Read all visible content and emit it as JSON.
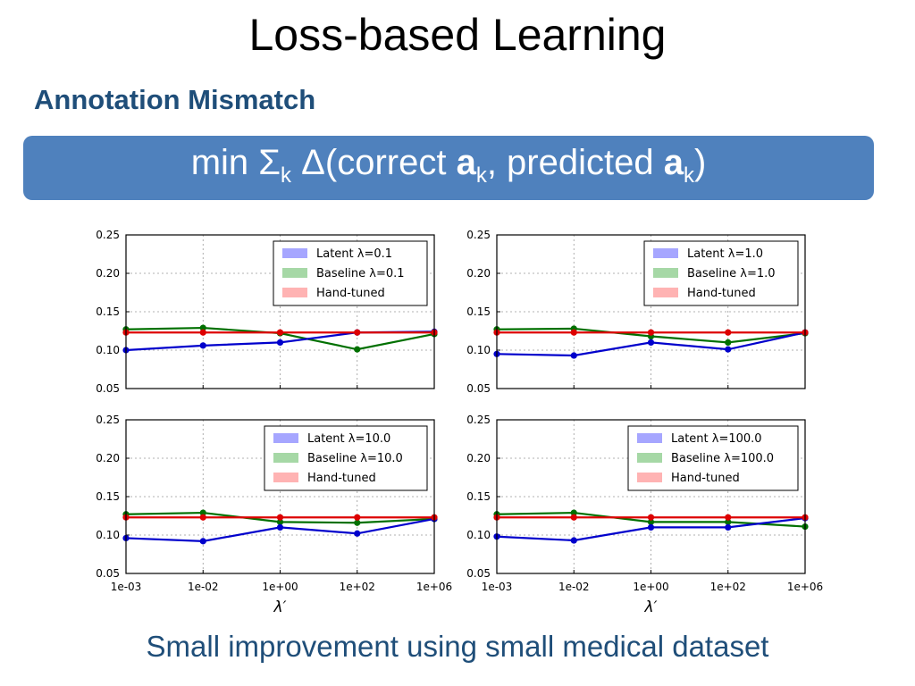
{
  "slide": {
    "title": "Loss-based Learning",
    "subtitle": "Annotation Mismatch",
    "formula": {
      "min": "min",
      "sigma": "Σ",
      "sigma_sub": "k",
      "delta": "Δ(correct ",
      "a1": "a",
      "a1_sub": "k",
      "mid": ", predicted ",
      "a2": "a",
      "a2_sub": "k",
      "close": ")"
    },
    "caption": "Small improvement using small medical dataset",
    "xlabel": "λ′"
  },
  "chart_data": [
    {
      "type": "line",
      "x": [
        "1e-03",
        "1e-02",
        "1e+00",
        "1e+02",
        "1e+06"
      ],
      "ylim": [
        0.05,
        0.25
      ],
      "yticks": [
        "0.25",
        "0.20",
        "0.15",
        "0.10",
        "0.05"
      ],
      "grid": true,
      "legend_position": "top-right",
      "series": [
        {
          "name": "Latent λ=0.1",
          "color": "#0000cc",
          "legend_color": "#a6a6ff",
          "values": [
            0.1,
            0.106,
            0.11,
            0.123,
            0.124
          ]
        },
        {
          "name": "Baseline λ=0.1",
          "color": "#007000",
          "legend_color": "#a6d8a6",
          "values": [
            0.127,
            0.129,
            0.122,
            0.101,
            0.121
          ]
        },
        {
          "name": "Hand-tuned",
          "color": "#dd0000",
          "legend_color": "#ffb3b3",
          "values": [
            0.123,
            0.123,
            0.123,
            0.123,
            0.123
          ]
        }
      ]
    },
    {
      "type": "line",
      "x": [
        "1e-03",
        "1e-02",
        "1e+00",
        "1e+02",
        "1e+06"
      ],
      "ylim": [
        0.05,
        0.25
      ],
      "yticks": [
        "0.25",
        "0.20",
        "0.15",
        "0.10",
        "0.05"
      ],
      "grid": true,
      "legend_position": "top-right",
      "series": [
        {
          "name": "Latent λ=1.0",
          "color": "#0000cc",
          "legend_color": "#a6a6ff",
          "values": [
            0.095,
            0.093,
            0.11,
            0.101,
            0.123
          ]
        },
        {
          "name": "Baseline λ=1.0",
          "color": "#007000",
          "legend_color": "#a6d8a6",
          "values": [
            0.127,
            0.128,
            0.118,
            0.11,
            0.122
          ]
        },
        {
          "name": "Hand-tuned",
          "color": "#dd0000",
          "legend_color": "#ffb3b3",
          "values": [
            0.123,
            0.123,
            0.123,
            0.123,
            0.123
          ]
        }
      ]
    },
    {
      "type": "line",
      "x": [
        "1e-03",
        "1e-02",
        "1e+00",
        "1e+02",
        "1e+06"
      ],
      "ylim": [
        0.05,
        0.25
      ],
      "yticks": [
        "0.25",
        "0.20",
        "0.15",
        "0.10",
        "0.05"
      ],
      "xticks": [
        "1e-03",
        "1e-02",
        "1e+00",
        "1e+02",
        "1e+06"
      ],
      "grid": true,
      "legend_position": "top-right",
      "series": [
        {
          "name": "Latent λ=10.0",
          "color": "#0000cc",
          "legend_color": "#a6a6ff",
          "values": [
            0.096,
            0.092,
            0.11,
            0.102,
            0.121
          ]
        },
        {
          "name": "Baseline λ=10.0",
          "color": "#007000",
          "legend_color": "#a6d8a6",
          "values": [
            0.127,
            0.129,
            0.117,
            0.116,
            0.121
          ]
        },
        {
          "name": "Hand-tuned",
          "color": "#dd0000",
          "legend_color": "#ffb3b3",
          "values": [
            0.123,
            0.123,
            0.123,
            0.123,
            0.123
          ]
        }
      ]
    },
    {
      "type": "line",
      "x": [
        "1e-03",
        "1e-02",
        "1e+00",
        "1e+02",
        "1e+06"
      ],
      "ylim": [
        0.05,
        0.25
      ],
      "yticks": [
        "0.25",
        "0.20",
        "0.15",
        "0.10",
        "0.05"
      ],
      "xticks": [
        "1e-03",
        "1e-02",
        "1e+00",
        "1e+02",
        "1e+06"
      ],
      "grid": true,
      "legend_position": "top-right",
      "series": [
        {
          "name": "Latent λ=100.0",
          "color": "#0000cc",
          "legend_color": "#a6a6ff",
          "values": [
            0.098,
            0.093,
            0.11,
            0.11,
            0.122
          ]
        },
        {
          "name": "Baseline λ=100.0",
          "color": "#007000",
          "legend_color": "#a6d8a6",
          "values": [
            0.127,
            0.129,
            0.117,
            0.117,
            0.111
          ]
        },
        {
          "name": "Hand-tuned",
          "color": "#dd0000",
          "legend_color": "#ffb3b3",
          "values": [
            0.123,
            0.123,
            0.123,
            0.123,
            0.123
          ]
        }
      ]
    }
  ]
}
